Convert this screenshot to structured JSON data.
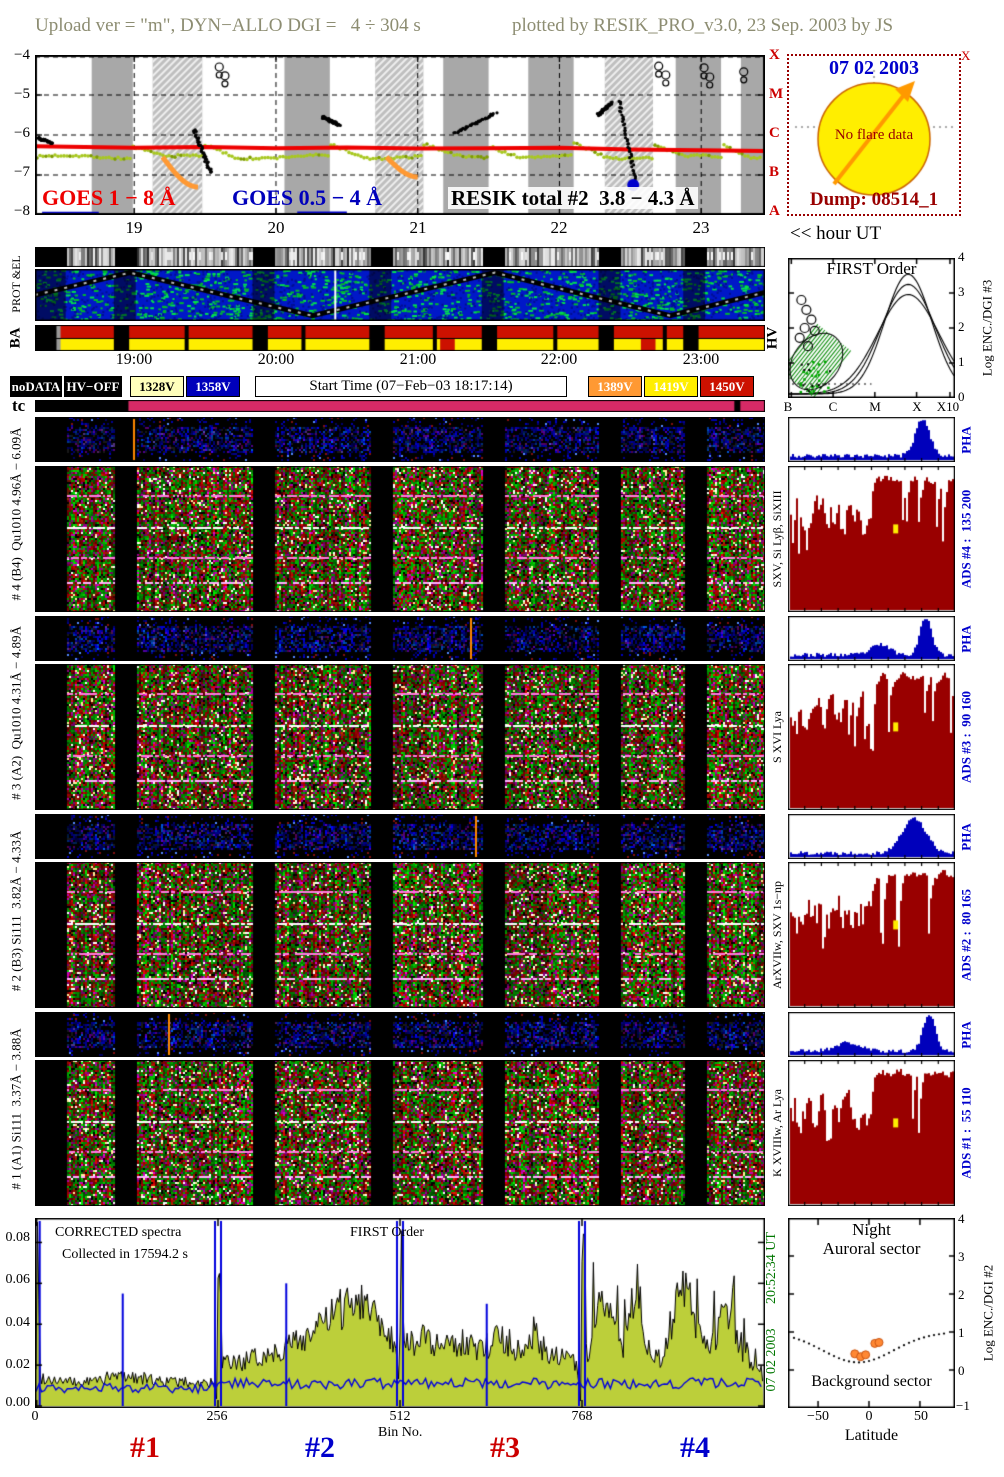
{
  "header": {
    "text_left": "Upload ver = \"m\", DYN−ALLO DGI =   4 ÷ 304 s",
    "text_right": "plotted by RESIK_PRO_v3.0, 23 Sep. 2003 by JS"
  },
  "goes": {
    "yticks": [
      "−4",
      "−5",
      "−6",
      "−7",
      "−8"
    ],
    "xticks": [
      "19",
      "20",
      "21",
      "22",
      "23"
    ],
    "class_letters": [
      "X",
      "M",
      "C",
      "B",
      "A"
    ],
    "label_goes18": "GOES 1 − 8 Å",
    "label_goes054": "GOES 0.5 − 4 Å",
    "label_resik": "RESIK total #2  3.8 − 4.3 Å"
  },
  "flare_box": {
    "date": "07 02 2003",
    "no_flare": "No flare data",
    "dump": "Dump: 08514_1",
    "corner": "X"
  },
  "hour_ut": "<< hour UT",
  "strip_labels": {
    "protel": "PROT &EL",
    "ba": "BA",
    "hv": "HV"
  },
  "time_ticks": [
    "19:00",
    "20:00",
    "21:00",
    "22:00",
    "23:00"
  ],
  "legend": {
    "items": [
      {
        "label": "noDATA",
        "bg": "#000000",
        "fg": "#ffffff"
      },
      {
        "label": "HV−OFF",
        "bg": "#000000",
        "fg": "#ffffff"
      },
      {
        "label": "1328V",
        "bg": "#ffffbb",
        "fg": "#000000"
      },
      {
        "label": "1358V",
        "bg": "#0000bb",
        "fg": "#ffffff"
      },
      {
        "label": "Start Time (07−Feb−03 18:17:14)",
        "bg": "#ffffff",
        "fg": "#000000"
      },
      {
        "label": "1389V",
        "bg": "#ff9933",
        "fg": "#ffffff"
      },
      {
        "label": "1419V",
        "bg": "#ffee00",
        "fg": "#ffffff"
      },
      {
        "label": "1450V",
        "bg": "#cc1100",
        "fg": "#ffffff"
      }
    ]
  },
  "tc_label": "tc",
  "channels": [
    {
      "axis": "# 4 (B4)  Qu1010 4.96Å − 6.09Å",
      "lines": "SXV, Si Lyβ, SiXIII",
      "pha": "PHA",
      "ads": "ADS #4 :  135 200"
    },
    {
      "axis": "# 3 (A2)  Qu1010 4.31Å − 4.89Å",
      "lines": "S XVI Lya",
      "pha": "PHA",
      "ads": "ADS #3 :  90 160"
    },
    {
      "axis": "# 2 (B3) Si111  3.82Å − 4.33Å",
      "lines": "ArXVIIw, SXV 1s−np",
      "pha": "PHA",
      "ads": "ADS #2 :  80 165"
    },
    {
      "axis": "# 1 (A1) Si111  3.37Å − 3.88Å",
      "lines": "K XVIIIw, Ar Lya",
      "pha": "PHA",
      "ads": "ADS #1 :  55 110"
    }
  ],
  "first_order": {
    "title": "FIRST Order",
    "xticks": [
      "B",
      "C",
      "M",
      "X",
      "X10"
    ],
    "yticks": [
      "4",
      "3",
      "2",
      "1",
      "0"
    ],
    "ylabel": "Log ENC./DGI #3"
  },
  "spectra": {
    "title1": "CORRECTED spectra",
    "title2": "Collected in 17594.2 s",
    "title3": "FIRST Order",
    "yticks": [
      "0.08",
      "0.06",
      "0.04",
      "0.02",
      "0.00"
    ],
    "xticks": [
      "0",
      "256",
      "512",
      "768"
    ],
    "xlabel": "Bin No.",
    "segments": [
      {
        "label": "#1",
        "color": "#cc0000"
      },
      {
        "label": "#2",
        "color": "#0000cc"
      },
      {
        "label": "#3",
        "color": "#cc0000"
      },
      {
        "label": "#4",
        "color": "#0000cc"
      }
    ],
    "right_top": "20:52:34 UT",
    "right_bottom": "07 02 2003"
  },
  "latitude_plot": {
    "title1": "Night",
    "title2": "Auroral sector",
    "label_bg": "Background sector",
    "xticks": [
      "−50",
      "0",
      "50"
    ],
    "xlabel": "Latitude",
    "yticks": [
      "4",
      "3",
      "2",
      "1",
      "0",
      "−1"
    ],
    "ylabel": "Log ENC./DGI #2"
  },
  "chart_data": [
    {
      "id": "goes_xray",
      "type": "line",
      "x_range": [
        18.3,
        23.45
      ],
      "ylim": [
        -8,
        -4
      ],
      "yticks": [
        -4,
        -5,
        -6,
        -7,
        -8
      ],
      "xticks": [
        19,
        20,
        21,
        22,
        23
      ],
      "right_axis_classes": [
        "X",
        "M",
        "C",
        "B",
        "A"
      ],
      "night_bands": [
        [
          18.7,
          18.99,
          "gray"
        ],
        [
          19.13,
          19.48,
          "hatch"
        ],
        [
          20.06,
          20.38,
          "gray"
        ],
        [
          20.7,
          21.04,
          "hatch"
        ],
        [
          21.18,
          21.5,
          "gray"
        ],
        [
          21.78,
          22.1,
          "gray"
        ],
        [
          22.32,
          22.66,
          "hatch"
        ],
        [
          22.82,
          23.14,
          "gray"
        ],
        [
          23.28,
          23.45,
          "gray"
        ]
      ],
      "series": [
        {
          "name": "GOES 1 − 8 Å",
          "color": "#ee0000",
          "x": [
            18.3,
            19.0,
            19.5,
            20.0,
            20.5,
            21.0,
            21.5,
            22.0,
            22.5,
            23.0,
            23.45
          ],
          "y": [
            -6.28,
            -6.32,
            -6.3,
            -6.33,
            -6.31,
            -6.34,
            -6.33,
            -6.32,
            -6.36,
            -6.38,
            -6.4
          ]
        },
        {
          "name": "GOES 0.5 − 4 Å",
          "color": "#0000cc",
          "segments": [
            [
              18.35,
              18.75,
              -7.97
            ],
            [
              20.15,
              20.5,
              -7.96
            ]
          ]
        },
        {
          "name": "monitor dots",
          "color": "#a8c820",
          "baseline": -6.55
        },
        {
          "name": "RESIK total #2  3.8 − 4.3 Å",
          "color": "#000000",
          "clusters": [
            [
              18.32,
              18.42,
              -6.08,
              -6.2
            ],
            [
              19.42,
              19.54,
              -5.85,
              -6.95
            ],
            [
              20.33,
              20.45,
              -5.55,
              -5.75
            ],
            [
              21.26,
              21.55,
              -5.95,
              -5.45
            ],
            [
              22.27,
              22.37,
              -5.5,
              -5.2
            ],
            [
              22.42,
              22.54,
              -5.15,
              -7.2
            ]
          ],
          "top_circles": [
            [
              19.6,
              -4.3
            ],
            [
              19.64,
              -4.52
            ],
            [
              22.7,
              -4.28
            ],
            [
              22.75,
              -4.5
            ],
            [
              23.02,
              -4.32
            ],
            [
              23.06,
              -4.55
            ],
            [
              23.3,
              -4.42
            ]
          ]
        },
        {
          "name": "flare decay traces",
          "color": "#ff9933",
          "arcs": [
            [
              19.2,
              19.45,
              -6.55,
              -7.3
            ],
            [
              20.78,
              21.0,
              -6.55,
              -7.05
            ]
          ]
        },
        {
          "name": "saturated point",
          "color": "#0000cc",
          "points": [
            [
              22.52,
              -7.25
            ]
          ]
        }
      ]
    },
    {
      "id": "corrected_spectra",
      "type": "area",
      "title": "CORRECTED spectra",
      "subtitle": "Collected in 17594.2 s",
      "order": "FIRST Order",
      "xlabel": "Bin No.",
      "xtick_bins": [
        1,
        256,
        512,
        768
      ],
      "ylim": [
        0,
        0.09
      ],
      "ytick_vals": [
        0,
        0.02,
        0.04,
        0.06,
        0.08
      ],
      "boundaries": [
        1,
        256,
        512,
        768
      ],
      "segment_labels": [
        "#1",
        "#2",
        "#3",
        "#4"
      ],
      "background_level": 0.009,
      "blue_spikes": [
        [
          122,
          0.055
        ],
        [
          352,
          0.06
        ],
        [
          634,
          0.05
        ]
      ],
      "envelope": [
        [
          0,
          0.02
        ],
        [
          2,
          0.088
        ],
        [
          6,
          0.014
        ],
        [
          60,
          0.011
        ],
        [
          120,
          0.015
        ],
        [
          180,
          0.012
        ],
        [
          250,
          0.011
        ],
        [
          254,
          0.003
        ],
        [
          257,
          0.085
        ],
        [
          262,
          0.02
        ],
        [
          300,
          0.022
        ],
        [
          340,
          0.027
        ],
        [
          380,
          0.034
        ],
        [
          420,
          0.044
        ],
        [
          450,
          0.054
        ],
        [
          468,
          0.05
        ],
        [
          490,
          0.04
        ],
        [
          508,
          0.028
        ],
        [
          511,
          0.003
        ],
        [
          513,
          0.088
        ],
        [
          518,
          0.03
        ],
        [
          545,
          0.033
        ],
        [
          575,
          0.028
        ],
        [
          600,
          0.031
        ],
        [
          625,
          0.027
        ],
        [
          650,
          0.033
        ],
        [
          675,
          0.028
        ],
        [
          700,
          0.031
        ],
        [
          730,
          0.024
        ],
        [
          760,
          0.021
        ],
        [
          766,
          0.003
        ],
        [
          769,
          0.09
        ],
        [
          775,
          0.022
        ],
        [
          795,
          0.062
        ],
        [
          810,
          0.042
        ],
        [
          825,
          0.028
        ],
        [
          845,
          0.058
        ],
        [
          860,
          0.032
        ],
        [
          878,
          0.023
        ],
        [
          898,
          0.044
        ],
        [
          912,
          0.062
        ],
        [
          928,
          0.038
        ],
        [
          948,
          0.026
        ],
        [
          972,
          0.048
        ],
        [
          988,
          0.028
        ],
        [
          1010,
          0.02
        ],
        [
          1023,
          0.015
        ]
      ]
    },
    {
      "id": "first_order_enc",
      "type": "scatter",
      "title": "FIRST Order",
      "xticks": [
        "B",
        "C",
        "M",
        "X",
        "X10"
      ],
      "ylabel": "Log ENC./DGI #3",
      "ylim": [
        0,
        4
      ],
      "curves": "three nested response curves peaking between X and X10",
      "circles": [
        [
          0.08,
          0.3
        ],
        [
          0.11,
          0.37
        ],
        [
          0.14,
          0.44
        ],
        [
          0.1,
          0.5
        ],
        [
          0.07,
          0.57
        ],
        [
          0.12,
          0.63
        ],
        [
          0.16,
          0.52
        ]
      ]
    },
    {
      "id": "night_sector",
      "type": "scatter",
      "title": "Night Auroral sector",
      "label": "Background sector",
      "xlabel": "Latitude",
      "xticks": [
        -50,
        0,
        50
      ],
      "ylabel": "Log ENC./DGI #2",
      "ylim": [
        -1,
        4
      ],
      "dotted_curve": "background level vs latitude with shallow dip left of 0",
      "points_frac": [
        [
          0.4,
          0.715
        ],
        [
          0.435,
          0.73
        ],
        [
          0.465,
          0.72
        ],
        [
          0.52,
          0.66
        ],
        [
          0.545,
          0.655
        ]
      ],
      "points_color": "#ff8833"
    },
    {
      "id": "spectrograms",
      "type": "heatmap",
      "panels": [
        "#4 (B4) Qu1010 4.96−6.09 Å",
        "#3 (A2) Qu1010 4.31−4.89 Å",
        "#2 (B3) Si111 3.82−4.33 Å",
        "#1 (A1) Si111 3.37−3.88 Å"
      ],
      "x_axis": "time 18:17 − 23:27 UT",
      "y_axis": "wavelength bin",
      "note": "false-color count-rate spectrograms with black orbital-night gaps; small companion panels show background (blue); right column: PHA and ADS pulse-height histograms per channel"
    }
  ],
  "render": {
    "gaps": [
      [
        0.0,
        0.042
      ],
      [
        0.108,
        0.138
      ],
      [
        0.298,
        0.328
      ],
      [
        0.458,
        0.488
      ],
      [
        0.612,
        0.642
      ],
      [
        0.772,
        0.802
      ],
      [
        0.888,
        0.918
      ]
    ],
    "panels": [
      {
        "id": "sp_b4",
        "kind": "blue",
        "seed": 11
      },
      {
        "id": "sp_r4",
        "kind": "rgb",
        "seed": 12
      },
      {
        "id": "sp_b3",
        "kind": "blue",
        "seed": 13
      },
      {
        "id": "sp_r3",
        "kind": "rgb",
        "seed": 14
      },
      {
        "id": "sp_b2",
        "kind": "blue",
        "seed": 15
      },
      {
        "id": "sp_r2",
        "kind": "rgb",
        "seed": 16
      },
      {
        "id": "sp_b1",
        "kind": "blue",
        "seed": 17
      },
      {
        "id": "sp_r1",
        "kind": "rgb",
        "seed": 18
      },
      {
        "id": "pha4",
        "kind": "pha",
        "seed": 24,
        "peaks": [
          [
            0.8,
            0.06,
            0.9
          ]
        ]
      },
      {
        "id": "pha3",
        "kind": "pha",
        "seed": 23,
        "peaks": [
          [
            0.82,
            0.05,
            0.92
          ],
          [
            0.55,
            0.08,
            0.25
          ]
        ]
      },
      {
        "id": "pha2",
        "kind": "pha",
        "seed": 22,
        "peaks": [
          [
            0.75,
            0.1,
            0.85
          ]
        ]
      },
      {
        "id": "pha1",
        "kind": "pha",
        "seed": 21,
        "peaks": [
          [
            0.84,
            0.05,
            0.92
          ],
          [
            0.35,
            0.1,
            0.2
          ]
        ]
      },
      {
        "id": "ads4",
        "kind": "ads",
        "seed": 34
      },
      {
        "id": "ads3",
        "kind": "ads",
        "seed": 33
      },
      {
        "id": "ads2",
        "kind": "ads",
        "seed": 32
      },
      {
        "id": "ads1",
        "kind": "ads",
        "seed": 31
      }
    ]
  }
}
